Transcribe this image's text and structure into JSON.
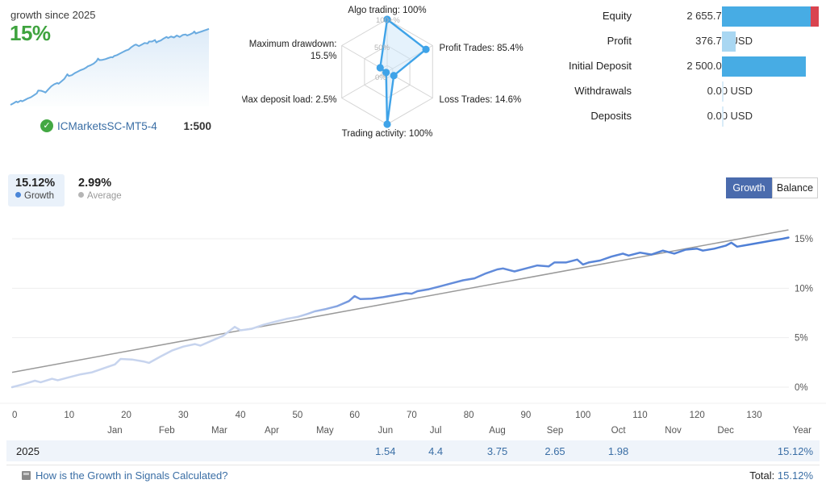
{
  "header": {
    "growth_label": "growth since 2025",
    "growth_value": "15%",
    "account_name": "ICMarketsSC-MT5-4",
    "leverage": "1:500",
    "check_icon": "check-badge"
  },
  "radar": {
    "axes": [
      {
        "lines": [
          "Algo trading: 100%"
        ],
        "value": 100
      },
      {
        "lines": [
          "Profit Trades: 85.4%"
        ],
        "value": 85.4
      },
      {
        "lines": [
          "Loss Trades: 14.6%"
        ],
        "value": 14.6
      },
      {
        "lines": [
          "Trading activity: 100%"
        ],
        "value": 100
      },
      {
        "lines": [
          "Max deposit load: 2.5%"
        ],
        "value": 2.5
      },
      {
        "lines": [
          "Maximum drawdown:",
          "15.5%"
        ],
        "value": 15.5
      }
    ],
    "rings": [
      {
        "r": 1.0,
        "label": "100+%"
      },
      {
        "r": 0.5,
        "label": "50%"
      },
      {
        "r": 0.12,
        "label": "0%"
      }
    ],
    "accent": "#3fa3e8",
    "fill": "rgba(203,230,249,0.5)",
    "grid": "#d5d5d5"
  },
  "account_stats": {
    "rows": [
      {
        "label": "Equity",
        "value": "2 655.73 USD",
        "segments": [
          {
            "color": "#47ace4",
            "w": 110
          },
          {
            "color": "#d9444f",
            "w": 10
          }
        ]
      },
      {
        "label": "Profit",
        "value": "376.73 USD",
        "segments": [
          {
            "color": "#a9d7f2",
            "w": 17
          }
        ]
      },
      {
        "label": "Initial Deposit",
        "value": "2 500.00 USD",
        "segments": [
          {
            "color": "#47ace4",
            "w": 104
          }
        ]
      },
      {
        "label": "Withdrawals",
        "value": "0.00 USD",
        "segments": [
          {
            "color": "#d9ecf8",
            "w": 2
          }
        ]
      },
      {
        "label": "Deposits",
        "value": "0.00 USD",
        "segments": [
          {
            "color": "#d9ecf8",
            "w": 2
          }
        ]
      }
    ]
  },
  "controls": {
    "stats": [
      {
        "value": "15.12%",
        "label": "Growth",
        "dot": "#4a86d8",
        "selected": true
      },
      {
        "value": "2.99%",
        "label": "Average",
        "dot": "#b5b5b5",
        "selected": false
      }
    ],
    "growth_button": "Growth",
    "balance_button": "Balance"
  },
  "chart_data": {
    "type": "line",
    "title": "Growth since 2025",
    "xlim": [
      0,
      136
    ],
    "ylim_pct": [
      0,
      15
    ],
    "y_ticks": [
      {
        "v": 0,
        "label": "0%"
      },
      {
        "v": 5,
        "label": "5%"
      },
      {
        "v": 10,
        "label": "10%"
      },
      {
        "v": 15,
        "label": "15%"
      }
    ],
    "x_ticks": [
      0,
      10,
      20,
      30,
      40,
      50,
      60,
      70,
      80,
      90,
      100,
      110,
      120,
      130
    ],
    "months": [
      {
        "label": "Jan",
        "day": 18
      },
      {
        "label": "Feb",
        "day": 27.1
      },
      {
        "label": "Mar",
        "day": 36.3
      },
      {
        "label": "Apr",
        "day": 45.5
      },
      {
        "label": "May",
        "day": 54.8
      },
      {
        "label": "Jun",
        "day": 65.4
      },
      {
        "label": "Jul",
        "day": 74.2
      },
      {
        "label": "Aug",
        "day": 85.0
      },
      {
        "label": "Sep",
        "day": 95.1
      },
      {
        "label": "Oct",
        "day": 106.2
      },
      {
        "label": "Nov",
        "day": 115.8
      },
      {
        "label": "Dec",
        "day": 125.0
      }
    ],
    "year_label": "Year",
    "series": [
      {
        "name": "Growth",
        "points": [
          [
            0,
            0.0
          ],
          [
            2,
            0.3
          ],
          [
            4,
            0.65
          ],
          [
            5,
            0.5
          ],
          [
            7,
            0.85
          ],
          [
            8,
            0.7
          ],
          [
            10,
            1.0
          ],
          [
            12,
            1.3
          ],
          [
            14,
            1.5
          ],
          [
            16,
            1.9
          ],
          [
            18,
            2.3
          ],
          [
            19,
            2.85
          ],
          [
            21,
            2.8
          ],
          [
            23,
            2.6
          ],
          [
            24,
            2.45
          ],
          [
            26,
            3.1
          ],
          [
            28,
            3.7
          ],
          [
            30,
            4.1
          ],
          [
            32,
            4.35
          ],
          [
            33,
            4.2
          ],
          [
            35,
            4.7
          ],
          [
            37,
            5.2
          ],
          [
            39,
            6.1
          ],
          [
            40,
            5.75
          ],
          [
            42,
            5.9
          ],
          [
            44,
            6.3
          ],
          [
            46,
            6.6
          ],
          [
            48,
            6.9
          ],
          [
            50,
            7.1
          ],
          [
            52,
            7.45
          ],
          [
            53,
            7.66
          ],
          [
            55,
            7.9
          ],
          [
            57,
            8.2
          ],
          [
            59,
            8.7
          ],
          [
            60,
            9.2
          ],
          [
            61,
            8.9
          ],
          [
            63,
            8.95
          ],
          [
            65,
            9.1
          ],
          [
            67,
            9.3
          ],
          [
            69,
            9.5
          ],
          [
            70,
            9.45
          ],
          [
            71,
            9.7
          ],
          [
            73,
            9.9
          ],
          [
            75,
            10.2
          ],
          [
            77,
            10.5
          ],
          [
            79,
            10.8
          ],
          [
            81,
            11.0
          ],
          [
            83,
            11.5
          ],
          [
            85,
            11.9
          ],
          [
            86,
            12.0
          ],
          [
            88,
            11.7
          ],
          [
            90,
            12.0
          ],
          [
            92,
            12.3
          ],
          [
            94,
            12.2
          ],
          [
            95,
            12.6
          ],
          [
            97,
            12.6
          ],
          [
            99,
            12.9
          ],
          [
            100,
            12.4
          ],
          [
            101,
            12.6
          ],
          [
            103,
            12.8
          ],
          [
            105,
            13.2
          ],
          [
            107,
            13.5
          ],
          [
            108,
            13.3
          ],
          [
            110,
            13.6
          ],
          [
            112,
            13.4
          ],
          [
            114,
            13.8
          ],
          [
            116,
            13.5
          ],
          [
            118,
            13.9
          ],
          [
            120,
            14.0
          ],
          [
            121,
            13.8
          ],
          [
            123,
            14.0
          ],
          [
            125,
            14.3
          ],
          [
            126,
            14.6
          ],
          [
            127,
            14.2
          ],
          [
            129,
            14.4
          ],
          [
            131,
            14.6
          ],
          [
            133,
            14.8
          ],
          [
            135,
            15.0
          ],
          [
            136,
            15.12
          ]
        ]
      },
      {
        "name": "Trend",
        "points": [
          [
            0,
            1.5
          ],
          [
            136,
            15.9
          ]
        ]
      }
    ],
    "line_color_start": "#c7d4ee",
    "line_color_end": "#4b7dd5",
    "trend_color": "#9a9a9a",
    "grid_color": "#ededee"
  },
  "table": {
    "year": "2025",
    "values": [
      {
        "month": "Jun",
        "value": "1.54"
      },
      {
        "month": "Jul",
        "value": "4.4"
      },
      {
        "month": "Aug",
        "value": "3.75"
      },
      {
        "month": "Sep",
        "value": "2.65"
      },
      {
        "month": "Oct",
        "value": "1.98"
      }
    ],
    "year_total": "15.12%"
  },
  "footer": {
    "help_link": "How is the Growth in Signals Calculated?",
    "total_label": "Total:",
    "total_value": "15.12%"
  }
}
